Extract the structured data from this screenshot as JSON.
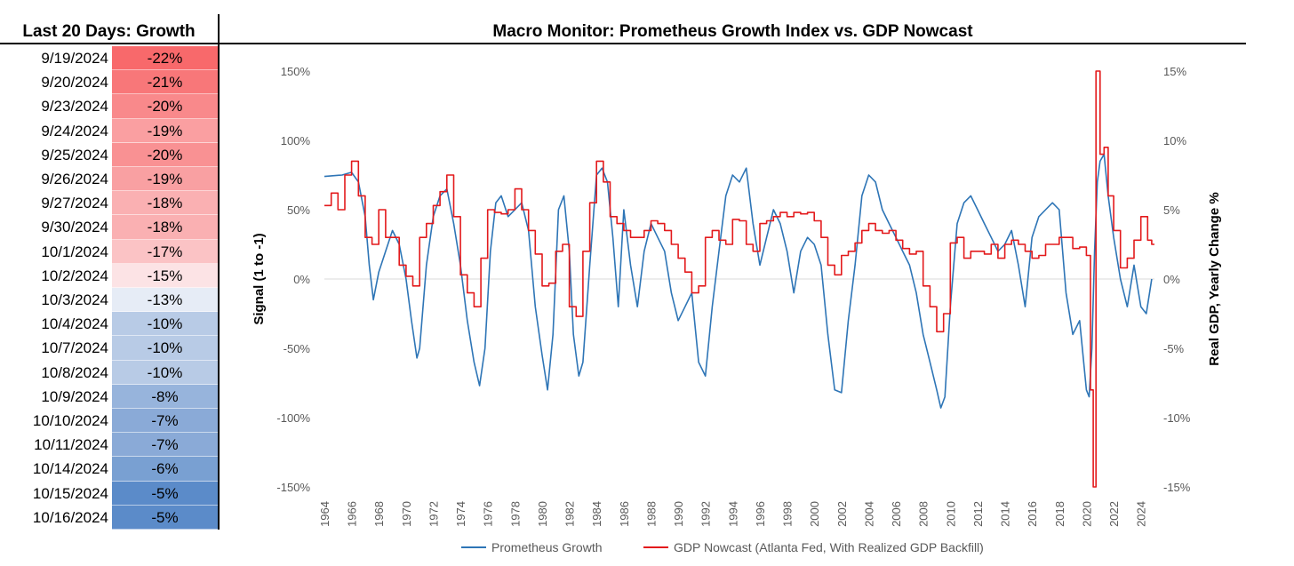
{
  "table": {
    "title": "Last 20 Days: Growth",
    "rows": [
      {
        "date": "9/19/2024",
        "value": "-22%",
        "color": "#f8696b"
      },
      {
        "date": "9/20/2024",
        "value": "-21%",
        "color": "#f87779"
      },
      {
        "date": "9/23/2024",
        "value": "-20%",
        "color": "#f9898b"
      },
      {
        "date": "9/24/2024",
        "value": "-19%",
        "color": "#fa9fa1"
      },
      {
        "date": "9/25/2024",
        "value": "-20%",
        "color": "#f99193"
      },
      {
        "date": "9/26/2024",
        "value": "-19%",
        "color": "#f9a0a2"
      },
      {
        "date": "9/27/2024",
        "value": "-18%",
        "color": "#fab0b2"
      },
      {
        "date": "9/30/2024",
        "value": "-18%",
        "color": "#fab0b2"
      },
      {
        "date": "10/1/2024",
        "value": "-17%",
        "color": "#fbc3c5"
      },
      {
        "date": "10/2/2024",
        "value": "-15%",
        "color": "#fce3e5"
      },
      {
        "date": "10/3/2024",
        "value": "-13%",
        "color": "#e6ecf6"
      },
      {
        "date": "10/4/2024",
        "value": "-10%",
        "color": "#b8cbe6"
      },
      {
        "date": "10/7/2024",
        "value": "-10%",
        "color": "#b8cbe6"
      },
      {
        "date": "10/8/2024",
        "value": "-10%",
        "color": "#b8cbe6"
      },
      {
        "date": "10/9/2024",
        "value": "-8%",
        "color": "#97b4dc"
      },
      {
        "date": "10/10/2024",
        "value": "-7%",
        "color": "#8aaad7"
      },
      {
        "date": "10/11/2024",
        "value": "-7%",
        "color": "#8aaad7"
      },
      {
        "date": "10/14/2024",
        "value": "-6%",
        "color": "#79a0d2"
      },
      {
        "date": "10/15/2024",
        "value": "-5%",
        "color": "#5b8bc9"
      },
      {
        "date": "10/16/2024",
        "value": "-5%",
        "color": "#5b8bc9"
      }
    ]
  },
  "chart_data": {
    "type": "line",
    "title": "Macro Monitor: Prometheus Growth Index vs. GDP Nowcast",
    "ylabel": "Signal (1 to -1)",
    "y2label": "Real GDP, Yearly Change %",
    "ylim": [
      -150,
      150
    ],
    "y2lim": [
      -15,
      15
    ],
    "yticks": [
      "150%",
      "100%",
      "50%",
      "0%",
      "-50%",
      "-100%",
      "-150%"
    ],
    "y2ticks": [
      "15%",
      "10%",
      "5%",
      "0%",
      "-5%",
      "-10%",
      "-15%"
    ],
    "xlim": [
      1964,
      2025
    ],
    "xticks": [
      "1964",
      "1966",
      "1968",
      "1970",
      "1972",
      "1974",
      "1976",
      "1978",
      "1980",
      "1982",
      "1984",
      "1986",
      "1988",
      "1990",
      "1992",
      "1994",
      "1996",
      "1998",
      "2000",
      "2002",
      "2004",
      "2006",
      "2008",
      "2010",
      "2012",
      "2014",
      "2016",
      "2018",
      "2020",
      "2022",
      "2024"
    ],
    "legend_position": "bottom",
    "series": [
      {
        "name": "Prometheus Growth",
        "axis": "left",
        "color": "#2e75b6",
        "x": [
          1964.0,
          1965.3,
          1966.0,
          1966.5,
          1967.0,
          1967.3,
          1967.6,
          1968.0,
          1968.5,
          1969.0,
          1969.5,
          1970.0,
          1970.4,
          1970.8,
          1971.0,
          1971.5,
          1972.0,
          1972.5,
          1973.0,
          1973.5,
          1974.0,
          1974.5,
          1975.0,
          1975.4,
          1975.8,
          1976.2,
          1976.6,
          1977.0,
          1977.5,
          1978.0,
          1978.5,
          1979.0,
          1979.5,
          1980.0,
          1980.4,
          1980.8,
          1981.2,
          1981.6,
          1982.0,
          1982.3,
          1982.7,
          1983.0,
          1983.5,
          1984.0,
          1984.4,
          1984.8,
          1985.2,
          1985.6,
          1986.0,
          1986.5,
          1987.0,
          1987.5,
          1988.0,
          1988.5,
          1989.0,
          1989.5,
          1990.0,
          1990.5,
          1991.0,
          1991.5,
          1992.0,
          1992.5,
          1993.0,
          1993.5,
          1994.0,
          1994.5,
          1995.0,
          1995.5,
          1996.0,
          1996.5,
          1997.0,
          1997.5,
          1998.0,
          1998.5,
          1999.0,
          1999.5,
          2000.0,
          2000.5,
          2001.0,
          2001.5,
          2002.0,
          2002.5,
          2003.0,
          2003.5,
          2004.0,
          2004.5,
          2005.0,
          2005.5,
          2006.0,
          2006.5,
          2007.0,
          2007.5,
          2008.0,
          2008.5,
          2009.0,
          2009.3,
          2009.6,
          2010.0,
          2010.5,
          2011.0,
          2011.5,
          2012.0,
          2012.5,
          2013.0,
          2013.5,
          2014.0,
          2014.5,
          2015.0,
          2015.5,
          2016.0,
          2016.5,
          2017.0,
          2017.5,
          2018.0,
          2018.5,
          2019.0,
          2019.5,
          2020.0,
          2020.2,
          2020.4,
          2020.6,
          2020.8,
          2021.0,
          2021.3,
          2021.6,
          2022.0,
          2022.5,
          2023.0,
          2023.5,
          2024.0,
          2024.4,
          2024.8
        ],
        "y": [
          74,
          75,
          77,
          70,
          45,
          10,
          -15,
          5,
          20,
          35,
          25,
          0,
          -30,
          -57,
          -50,
          10,
          45,
          60,
          65,
          40,
          10,
          -30,
          -60,
          -77,
          -50,
          20,
          55,
          60,
          45,
          50,
          55,
          35,
          -20,
          -55,
          -80,
          -40,
          50,
          60,
          20,
          -40,
          -70,
          -60,
          10,
          75,
          80,
          70,
          30,
          -20,
          50,
          10,
          -20,
          20,
          40,
          30,
          20,
          -10,
          -30,
          -20,
          -10,
          -60,
          -70,
          -20,
          20,
          60,
          75,
          70,
          80,
          40,
          10,
          30,
          50,
          40,
          20,
          -10,
          20,
          30,
          25,
          10,
          -40,
          -80,
          -82,
          -30,
          10,
          60,
          75,
          70,
          50,
          40,
          30,
          20,
          10,
          -10,
          -40,
          -60,
          -80,
          -93,
          -85,
          -20,
          40,
          55,
          60,
          50,
          40,
          30,
          20,
          25,
          35,
          10,
          -20,
          30,
          45,
          50,
          55,
          50,
          -10,
          -40,
          -30,
          -80,
          -85,
          -50,
          20,
          70,
          85,
          90,
          60,
          30,
          0,
          -20,
          10,
          -20,
          -25,
          0
        ]
      },
      {
        "name": "GDP Nowcast (Atlanta Fed, With Realized GDP Backfill)",
        "axis": "right",
        "color": "#e31a1c",
        "step": true,
        "x": [
          1964.0,
          1964.5,
          1965.0,
          1965.5,
          1966.0,
          1966.5,
          1967.0,
          1967.5,
          1968.0,
          1968.5,
          1969.0,
          1969.5,
          1970.0,
          1970.5,
          1971.0,
          1971.5,
          1972.0,
          1972.5,
          1973.0,
          1973.5,
          1974.0,
          1974.5,
          1975.0,
          1975.5,
          1976.0,
          1976.5,
          1977.0,
          1977.5,
          1978.0,
          1978.5,
          1979.0,
          1979.5,
          1980.0,
          1980.5,
          1981.0,
          1981.5,
          1982.0,
          1982.5,
          1983.0,
          1983.5,
          1984.0,
          1984.5,
          1985.0,
          1985.5,
          1986.0,
          1986.5,
          1987.0,
          1987.5,
          1988.0,
          1988.5,
          1989.0,
          1989.5,
          1990.0,
          1990.5,
          1991.0,
          1991.5,
          1992.0,
          1992.5,
          1993.0,
          1993.5,
          1994.0,
          1994.5,
          1995.0,
          1995.5,
          1996.0,
          1996.5,
          1997.0,
          1997.5,
          1998.0,
          1998.5,
          1999.0,
          1999.5,
          2000.0,
          2000.5,
          2001.0,
          2001.5,
          2002.0,
          2002.5,
          2003.0,
          2003.5,
          2004.0,
          2004.5,
          2005.0,
          2005.5,
          2006.0,
          2006.5,
          2007.0,
          2007.5,
          2008.0,
          2008.5,
          2009.0,
          2009.5,
          2010.0,
          2010.5,
          2011.0,
          2011.5,
          2012.0,
          2012.5,
          2013.0,
          2013.5,
          2014.0,
          2014.5,
          2015.0,
          2015.5,
          2016.0,
          2016.5,
          2017.0,
          2017.5,
          2018.0,
          2018.5,
          2019.0,
          2019.5,
          2020.0,
          2020.3,
          2020.5,
          2020.7,
          2021.0,
          2021.3,
          2021.6,
          2022.0,
          2022.5,
          2023.0,
          2023.5,
          2024.0,
          2024.5,
          2024.8
        ],
        "y": [
          5.3,
          6.2,
          5.0,
          7.5,
          8.5,
          6.0,
          3.0,
          2.5,
          5.0,
          3.0,
          3.0,
          1.0,
          0.2,
          -0.5,
          3.0,
          4.0,
          5.3,
          6.3,
          7.5,
          4.5,
          0.3,
          -1.0,
          -2.0,
          1.5,
          5.0,
          4.8,
          4.7,
          5.0,
          6.5,
          5.0,
          3.5,
          1.8,
          -0.5,
          -0.3,
          2.0,
          2.5,
          -2.0,
          -2.7,
          2.0,
          5.5,
          8.5,
          7.0,
          4.5,
          4.0,
          3.5,
          3.0,
          3.0,
          3.5,
          4.2,
          4.0,
          3.5,
          2.5,
          1.5,
          0.5,
          -1.0,
          -0.5,
          3.0,
          3.5,
          2.8,
          2.5,
          4.3,
          4.2,
          2.5,
          2.0,
          4.0,
          4.2,
          4.5,
          4.8,
          4.5,
          4.8,
          4.7,
          4.8,
          4.2,
          3.0,
          1.0,
          0.3,
          1.7,
          2.0,
          2.6,
          3.5,
          4.0,
          3.5,
          3.3,
          3.5,
          2.8,
          2.2,
          1.8,
          2.0,
          -0.5,
          -2.0,
          -3.8,
          -2.5,
          2.6,
          3.0,
          1.5,
          2.0,
          2.0,
          1.8,
          2.5,
          1.5,
          2.5,
          2.8,
          2.5,
          2.0,
          1.5,
          1.7,
          2.5,
          2.5,
          3.0,
          3.0,
          2.2,
          2.3,
          1.7,
          -8.0,
          -15.0,
          15.0,
          9.0,
          9.5,
          6.0,
          3.5,
          0.8,
          1.5,
          2.8,
          4.5,
          2.8,
          2.5
        ]
      }
    ]
  }
}
